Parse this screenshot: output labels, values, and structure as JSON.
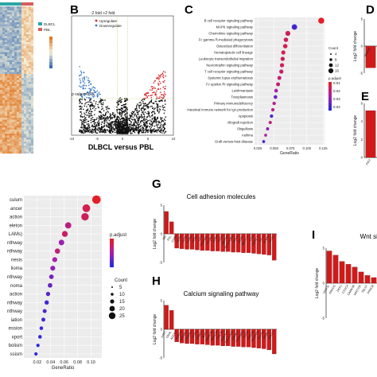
{
  "panel_letters": {
    "b": "B",
    "c": "C",
    "d": "D",
    "e": "E",
    "g": "G",
    "h": "H",
    "i": "I"
  },
  "chart_data": [
    {
      "id": "heatmap",
      "type": "heatmap",
      "legend": [
        "DLBCL",
        "PBL"
      ],
      "colors": {
        "DLBCL": "#2aa6a6",
        "PBL": "#d85c5c",
        "low": "#3b6fb3",
        "mid": "#f5f0d8",
        "high": "#e07a2a"
      }
    },
    {
      "id": "volcano",
      "type": "scatter",
      "title_top": "-2 fold  +2 fold",
      "xlabel": "DLBCL versus PBL",
      "threshold_label": "p value=0.05",
      "legend": [
        "Upregulate",
        "Downregulate"
      ],
      "colors": {
        "Upregulate": "#d62728",
        "Downregulate": "#3a7dc2",
        "ns": "#111111"
      },
      "xlim": [
        -10,
        10
      ],
      "xticks": [
        "-10",
        "-5",
        "0",
        "5",
        "10"
      ]
    },
    {
      "id": "kegg_top",
      "type": "scatter",
      "xlabel": "GeneRatio",
      "xlim": [
        0.02,
        0.127
      ],
      "xticks": [
        0.025,
        0.05,
        0.075,
        0.1,
        0.125
      ],
      "categories": [
        "B cell receptor signaling pathway",
        "MAPK signaling pathway",
        "Chemokine signaling pathway",
        "Fc gamma R-mediated phagocytosis",
        "Osteoclast differentiation",
        "Hematopoietic cell lineage",
        "Leukocyte transendothelial migration",
        "Neurotrophin signaling pathway",
        "T cell receptor signaling pathway",
        "Systemic lupus erythematosus",
        "Fc epsilon RI signaling pathway",
        "Leishmaniasis",
        "Toxoplasmosis",
        "Primary immunodeficiency",
        "Intestinal immune network for IgA production",
        "Apoptosis",
        "Allograft rejection",
        "Shigellosis",
        "Asthma",
        "Graft-versus-host disease"
      ],
      "gene_ratio": [
        0.122,
        0.081,
        0.071,
        0.068,
        0.067,
        0.064,
        0.063,
        0.062,
        0.061,
        0.058,
        0.056,
        0.053,
        0.052,
        0.05,
        0.048,
        0.046,
        0.044,
        0.04,
        0.037,
        0.034
      ],
      "count": [
        16,
        14,
        12,
        10,
        10,
        9,
        9,
        9,
        9,
        8,
        8,
        7,
        7,
        6,
        6,
        6,
        5,
        5,
        4,
        4
      ],
      "p_adjust_level": [
        0.0,
        0.9,
        0.2,
        0.2,
        0.15,
        0.15,
        0.2,
        0.2,
        0.25,
        0.3,
        0.3,
        0.5,
        0.75,
        0.4,
        0.4,
        0.85,
        0.3,
        0.6,
        0.45,
        0.9
      ],
      "legend_count_title": "Count",
      "legend_count": [
        "4",
        "8",
        "12",
        "16"
      ],
      "legend_padj_title": "p.adjust",
      "legend_padj_ticks": [
        "0.01",
        "0.02",
        "0.03",
        "0.04"
      ]
    },
    {
      "id": "kegg_bottom",
      "type": "scatter",
      "xlabel": "GeneRatio",
      "xlim": [
        0.0,
        0.116
      ],
      "xticks": [
        0.02,
        0.04,
        0.06,
        0.08,
        0.1
      ],
      "categories": [
        "culum",
        "ancer",
        "action",
        "eleton",
        "LAMs)",
        "nthway",
        "nthway",
        "nesis",
        "lioma",
        "nthway",
        "noma",
        "action",
        "nthway",
        "nthway",
        "iation",
        "ession",
        "xport",
        "bolism",
        "ssism"
      ],
      "gene_ratio": [
        0.108,
        0.093,
        0.091,
        0.066,
        0.061,
        0.056,
        0.05,
        0.046,
        0.043,
        0.041,
        0.039,
        0.036,
        0.034,
        0.031,
        0.029,
        0.026,
        0.024,
        0.021,
        0.018
      ],
      "count": [
        20,
        18,
        17,
        13,
        12,
        11,
        10,
        9,
        9,
        8,
        8,
        7,
        7,
        6,
        6,
        5,
        5,
        4,
        4
      ],
      "p_adjust_level": [
        0.0,
        0.15,
        0.2,
        0.35,
        0.25,
        0.55,
        0.3,
        0.5,
        0.6,
        0.7,
        0.75,
        0.8,
        0.9,
        0.85,
        0.9,
        0.95,
        0.95,
        1.0,
        0.95
      ],
      "legend_padj_title": "p.adjust",
      "legend_count_title": "Count",
      "legend_count": [
        "5",
        "10",
        "15",
        "20",
        "25"
      ]
    },
    {
      "id": "g_bar",
      "type": "bar",
      "title": "Cell adhesion molecules",
      "ylabel": "Log2 fold change",
      "ylim": [
        -5,
        5
      ],
      "yticks": [
        "-5",
        "0",
        "5"
      ],
      "categories": [
        "BM",
        "PDL",
        "CD8b",
        "CD3G",
        "CD3D",
        "CD8A",
        "CD80",
        "CD2",
        "PECAM1",
        "CLDN1",
        "CD86",
        "CD28",
        "NRXN1",
        "HLA-DQB1",
        "VCAN",
        "ITGAL",
        "SELPLG",
        "CD6",
        "CD40LG",
        "SELL",
        "ICAM2",
        "CD22"
      ],
      "values": [
        3.9,
        2.1,
        -2.5,
        -2.6,
        -2.7,
        -2.7,
        -2.8,
        -2.9,
        -2.9,
        -3.0,
        -3.0,
        -3.1,
        -3.1,
        -3.2,
        -3.2,
        -3.3,
        -3.3,
        -3.4,
        -3.5,
        -3.6,
        -3.7,
        -4.6
      ]
    },
    {
      "id": "h_bar",
      "type": "bar",
      "title": "Calcium signaling pathway",
      "ylabel": "Log2 fold change",
      "ylim": [
        -5,
        5
      ],
      "yticks": [
        "-5",
        "0",
        "5"
      ],
      "categories": [
        "HTR7",
        "GNAL",
        "ADCY4",
        "P2RX5",
        "ATP2B4",
        "PTGER3",
        "CCR3",
        "GNA14",
        "NOS3",
        "CAMK2B",
        "TBXA2R",
        "PTK2B",
        "ADRA1A",
        "CACNA1E",
        "CAMK4",
        "CACNA1I",
        "CD38",
        "PDE1B",
        "PDGFRB",
        "PLCB2",
        "GRIN1",
        "P2RX7"
      ],
      "values": [
        4.2,
        3.3,
        -2.2,
        -2.4,
        -2.5,
        -2.5,
        -2.6,
        -2.6,
        -2.7,
        -2.8,
        -2.8,
        -2.9,
        -2.9,
        -3.0,
        -3.0,
        -3.1,
        -3.1,
        -3.2,
        -3.3,
        -3.4,
        -3.6,
        -4.3
      ]
    },
    {
      "id": "i_bar",
      "type": "bar",
      "title": "Wnt sig",
      "ylabel": "Log2 fold change",
      "ylim": [
        -5,
        5
      ],
      "yticks": [
        "-5",
        "0",
        "5"
      ],
      "categories": [
        "WNT11",
        "PRKCG",
        "DKK1",
        "CXXC4",
        "CAMK2B",
        "WNT10A",
        "TBL1X",
        "PRKCB"
      ],
      "values": [
        4.6,
        4.0,
        3.1,
        2.7,
        2.3,
        1.6,
        1.1,
        0.8
      ]
    },
    {
      "id": "d_bar",
      "type": "bar",
      "ylabel": "Log2 fold change",
      "ylim": [
        -5,
        5
      ],
      "yticks": [
        "5",
        "0",
        "-5"
      ],
      "categories": [
        "MAP3K"
      ],
      "values": [
        -4.0
      ]
    },
    {
      "id": "e_bar",
      "type": "bar",
      "ylabel": "Log2 fold change",
      "ylim": [
        0,
        6
      ],
      "yticks": [
        "6",
        "4",
        "2",
        "0"
      ],
      "categories": [
        "PIK3"
      ],
      "values": [
        5.2
      ]
    }
  ]
}
